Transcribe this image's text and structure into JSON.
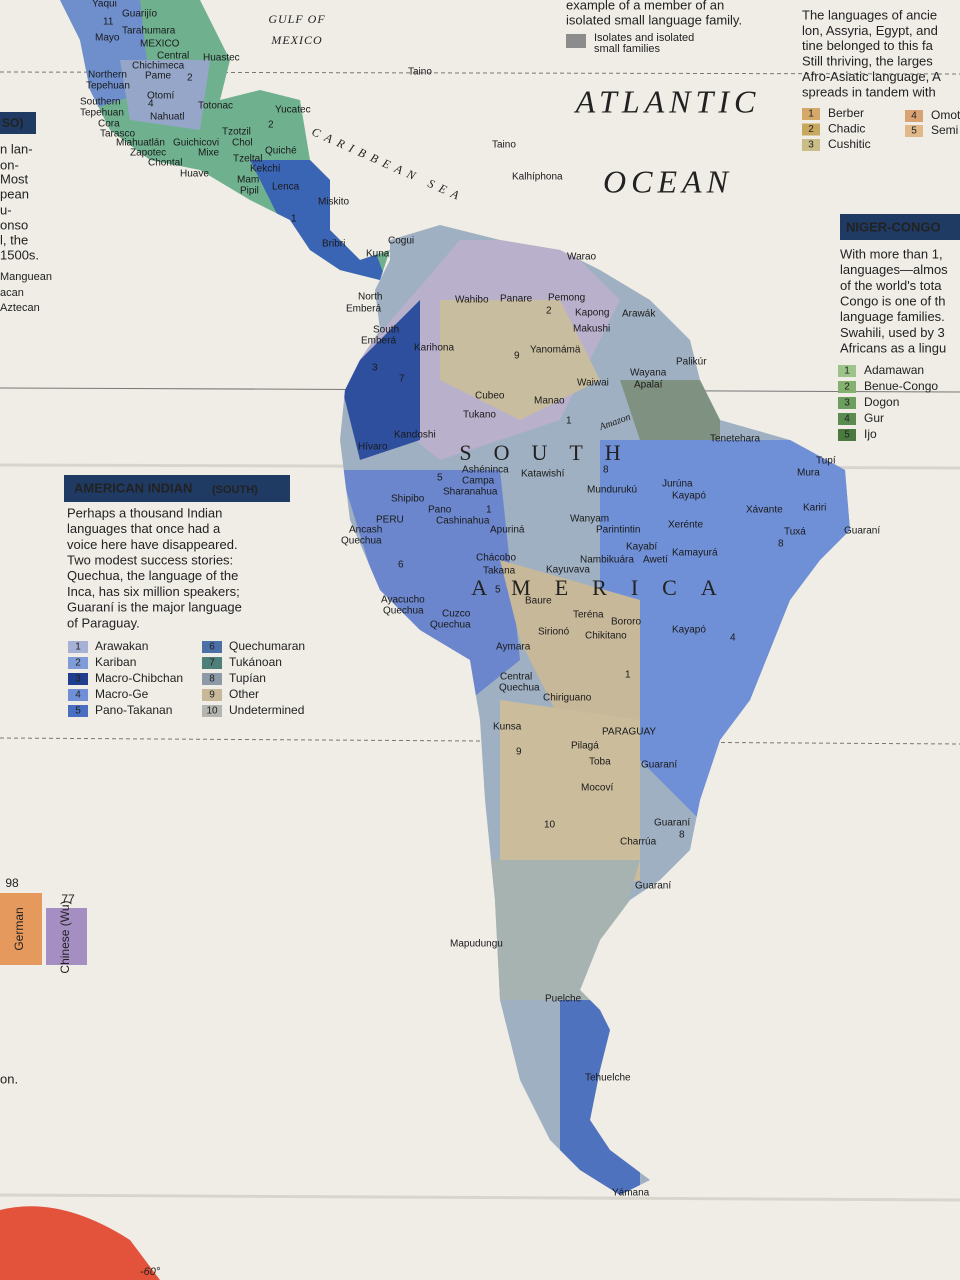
{
  "water_labels": [
    "GULF OF",
    "MEXICO",
    "ATLANTIC",
    "OCEAN",
    "CARIBBEAN SEA"
  ],
  "continent_label": [
    "SOUTH",
    "AMERICA"
  ],
  "map": {
    "labels": [
      "Yaqui",
      "Guarijío",
      "Tarahumara",
      "Mayo",
      "11",
      "MEXICO",
      "Central",
      "Chichimeca",
      "Pame",
      "Huastec",
      "2",
      "Northern",
      "Tepehuan",
      "Otomí",
      "4",
      "Southern",
      "Tepehuan",
      "Nahuatl",
      "Totonac",
      "Cora",
      "Tarasco",
      "Miahuatlán",
      "Guichicovi",
      "Zapotec",
      "Mixe",
      "Chontal",
      "Huave",
      "Yucatec",
      "2",
      "Tzotzil",
      "Chol",
      "Quiché",
      "Tzeltal",
      "Kekchí",
      "Mam",
      "Pipil",
      "Lenca",
      "1",
      "Miskito",
      "Bribri",
      "Cogui",
      "Kuna",
      "Warao",
      "Taino",
      "Taino",
      "Kalhíphona",
      "North",
      "Emberá",
      "Wahibo",
      "Panare",
      "Pemong",
      "2",
      "Kapong",
      "Arawák",
      "Makushi",
      "South",
      "Emberá",
      "Karihona",
      "Yanomámä",
      "9",
      "Palikúr",
      "3",
      "7",
      "Waiwai",
      "Wayana",
      "Apalaí",
      "Cubeo",
      "Manao",
      "Tukano",
      "1",
      "Kandoshi",
      "Hívaro",
      "Tenetehara",
      "Ashéninca",
      "Campa",
      "Katawishí",
      "8",
      "Tupí",
      "Mura",
      "5",
      "Mundurukú",
      "Jurúna",
      "Kayapó",
      "Shipibo",
      "Sharanahua",
      "Pano",
      "1",
      "Cashinahua",
      "Xávante",
      "Kariri",
      "PERU",
      "Wanyam",
      "Xerénte",
      "Parintintin",
      "Ancash",
      "Quechua",
      "Apuriná",
      "Tuxá",
      "Guaraní",
      "8",
      "Kayabí",
      "Kamayurá",
      "Chácobo",
      "Nambikuára",
      "Awetí",
      "6",
      "Takana",
      "Kayuvava",
      "5",
      "Ayacucho",
      "Quechua",
      "Baure",
      "Cuzco",
      "Quechua",
      "Teréna",
      "Bororo",
      "Sirionó",
      "Chikitano",
      "Kayapó",
      "4",
      "Aymara",
      "1",
      "Central",
      "Quechua",
      "Chiriguano",
      "Kunsa",
      "PARAGUAY",
      "9",
      "Pilagá",
      "Toba",
      "Guaraní",
      "Mocoví",
      "10",
      "Guaraní",
      "8",
      "Charrúa",
      "Guaraní",
      "Mapudungu",
      "Puelche",
      "Tehuelche",
      "Yámana",
      "Amazon"
    ]
  },
  "isolates_note": {
    "lines": [
      "example of a member of an",
      "isolated small language family."
    ],
    "legend": [
      "Isolates and isolated",
      "small families"
    ]
  },
  "afro_asiatic": {
    "lines": [
      "The languages of ancie",
      "lon, Assyria, Egypt, and",
      "tine belonged to this fa",
      "Still thriving, the larges",
      "Afro-Asiatic language, A",
      "spreads in tandem with"
    ],
    "legend": [
      {
        "num": 1,
        "name": "Berber"
      },
      {
        "num": 2,
        "name": "Chadic"
      },
      {
        "num": 3,
        "name": "Cushitic"
      },
      {
        "num": 4,
        "name": "Omot"
      },
      {
        "num": 5,
        "name": "Semi"
      }
    ]
  },
  "niger_congo": {
    "title": "NIGER-CONGO",
    "lines": [
      "With more than 1,",
      "languages—almos",
      "of the world's tota",
      "Congo is one of th",
      "language families.",
      "Swahili, used by 3",
      "Africans as a lingu"
    ],
    "legend": [
      {
        "num": 1,
        "name": "Adamawan"
      },
      {
        "num": 2,
        "name": "Benue-Congo"
      },
      {
        "num": 3,
        "name": "Dogon"
      },
      {
        "num": 4,
        "name": "Gur"
      },
      {
        "num": 5,
        "name": "Ijo"
      }
    ]
  },
  "left_fragment": {
    "title": "SO)",
    "lines": [
      "n lan-",
      "on-",
      "Most",
      "pean",
      "u-",
      "onso",
      "l, the",
      "1500s.",
      "Manguean",
      "acan",
      "Aztecan"
    ]
  },
  "american_indian": {
    "title": "AMERICAN INDIAN",
    "subtitle": "(SOUTH)",
    "lines": [
      "Perhaps a thousand Indian",
      "languages that once had a",
      "voice here have disappeared.",
      "Two modest success stories:",
      "Quechua, the language of the",
      "Inca, has six million speakers;",
      "Guaraní is the major language",
      "of Paraguay."
    ],
    "legend": [
      {
        "num": 1,
        "name": "Arawakan"
      },
      {
        "num": 2,
        "name": "Kariban"
      },
      {
        "num": 3,
        "name": "Macro-Chibchan"
      },
      {
        "num": 4,
        "name": "Macro-Ge"
      },
      {
        "num": 5,
        "name": "Pano-Takanan"
      },
      {
        "num": 6,
        "name": "Quechumaran"
      },
      {
        "num": 7,
        "name": "Tukánoan"
      },
      {
        "num": 8,
        "name": "Tupían"
      },
      {
        "num": 9,
        "name": "Other"
      },
      {
        "num": 10,
        "name": "Undetermined"
      }
    ]
  },
  "speaker_bars": [
    {
      "value": 98,
      "label": "German"
    },
    {
      "value": 77,
      "label": "Chinese (Wu)"
    }
  ],
  "footnote": "on.",
  "longitude": "-60°"
}
